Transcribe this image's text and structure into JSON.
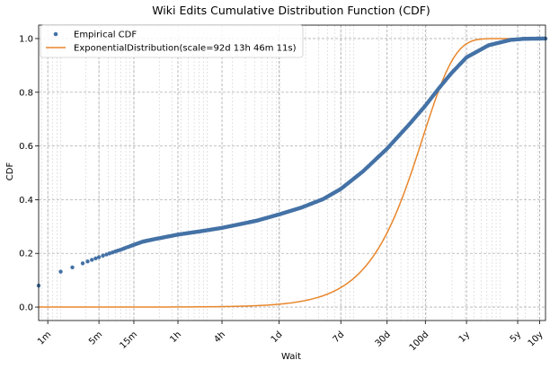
{
  "chart_data": {
    "type": "line",
    "title": "Wiki Edits Cumulative Distribution Function (CDF)",
    "xlabel": "Wait",
    "ylabel": "CDF",
    "x_scale": "log",
    "x_unit": "seconds",
    "xlim": [
      45,
      378432000
    ],
    "ylim": [
      -0.05,
      1.05
    ],
    "yticks": [
      0.0,
      0.2,
      0.4,
      0.6,
      0.8,
      1.0
    ],
    "ytick_labels": [
      "0.0",
      "0.2",
      "0.4",
      "0.6",
      "0.8",
      "1.0"
    ],
    "xticks": [
      {
        "label": "1m",
        "value": 60
      },
      {
        "label": "5m",
        "value": 300
      },
      {
        "label": "15m",
        "value": 900
      },
      {
        "label": "1h",
        "value": 3600
      },
      {
        "label": "4h",
        "value": 14400
      },
      {
        "label": "1d",
        "value": 86400
      },
      {
        "label": "7d",
        "value": 604800
      },
      {
        "label": "30d",
        "value": 2592000
      },
      {
        "label": "100d",
        "value": 8640000
      },
      {
        "label": "1y",
        "value": 31536000
      },
      {
        "label": "5y",
        "value": 157680000
      },
      {
        "label": "10y",
        "value": 315360000
      }
    ],
    "grid": true,
    "legend_position": "top-left",
    "series": [
      {
        "name": "Empirical CDF",
        "style": "markers",
        "color": "#4472a6",
        "points": [
          {
            "x": 45,
            "y": 0.08
          },
          {
            "x": 90,
            "y": 0.132
          },
          {
            "x": 130,
            "y": 0.148
          },
          {
            "x": 180,
            "y": 0.163
          },
          {
            "x": 240,
            "y": 0.176
          },
          {
            "x": 300,
            "y": 0.186
          },
          {
            "x": 400,
            "y": 0.198
          },
          {
            "x": 500,
            "y": 0.207
          },
          {
            "x": 600,
            "y": 0.214
          },
          {
            "x": 750,
            "y": 0.224
          },
          {
            "x": 900,
            "y": 0.232
          },
          {
            "x": 1200,
            "y": 0.244
          },
          {
            "x": 1800,
            "y": 0.254
          },
          {
            "x": 3600,
            "y": 0.27
          },
          {
            "x": 7200,
            "y": 0.282
          },
          {
            "x": 14400,
            "y": 0.295
          },
          {
            "x": 28800,
            "y": 0.312
          },
          {
            "x": 43200,
            "y": 0.322
          },
          {
            "x": 86400,
            "y": 0.345
          },
          {
            "x": 172800,
            "y": 0.37
          },
          {
            "x": 345600,
            "y": 0.402
          },
          {
            "x": 604800,
            "y": 0.44
          },
          {
            "x": 1209600,
            "y": 0.505
          },
          {
            "x": 2592000,
            "y": 0.59
          },
          {
            "x": 5184000,
            "y": 0.68
          },
          {
            "x": 8640000,
            "y": 0.75
          },
          {
            "x": 12960000,
            "y": 0.812
          },
          {
            "x": 19440000,
            "y": 0.87
          },
          {
            "x": 31536000,
            "y": 0.93
          },
          {
            "x": 63072000,
            "y": 0.975
          },
          {
            "x": 126144000,
            "y": 0.995
          },
          {
            "x": 189216000,
            "y": 0.999
          },
          {
            "x": 315360000,
            "y": 1.0
          },
          {
            "x": 378432000,
            "y": 1.0
          }
        ]
      },
      {
        "name": "ExponentialDistribution(scale=92d 13h 46m 11s)",
        "style": "line",
        "color": "#e8862b",
        "scale_seconds": 7998371,
        "points": [
          {
            "x": 45,
            "y": 0.0
          },
          {
            "x": 86400,
            "y": 0.011
          },
          {
            "x": 604800,
            "y": 0.073
          },
          {
            "x": 1209600,
            "y": 0.14
          },
          {
            "x": 2592000,
            "y": 0.277
          },
          {
            "x": 5184000,
            "y": 0.477
          },
          {
            "x": 8640000,
            "y": 0.66
          },
          {
            "x": 12960000,
            "y": 0.802
          },
          {
            "x": 19440000,
            "y": 0.912
          },
          {
            "x": 31536000,
            "y": 0.981
          },
          {
            "x": 63072000,
            "y": 0.9996
          },
          {
            "x": 378432000,
            "y": 1.0
          }
        ]
      }
    ]
  }
}
